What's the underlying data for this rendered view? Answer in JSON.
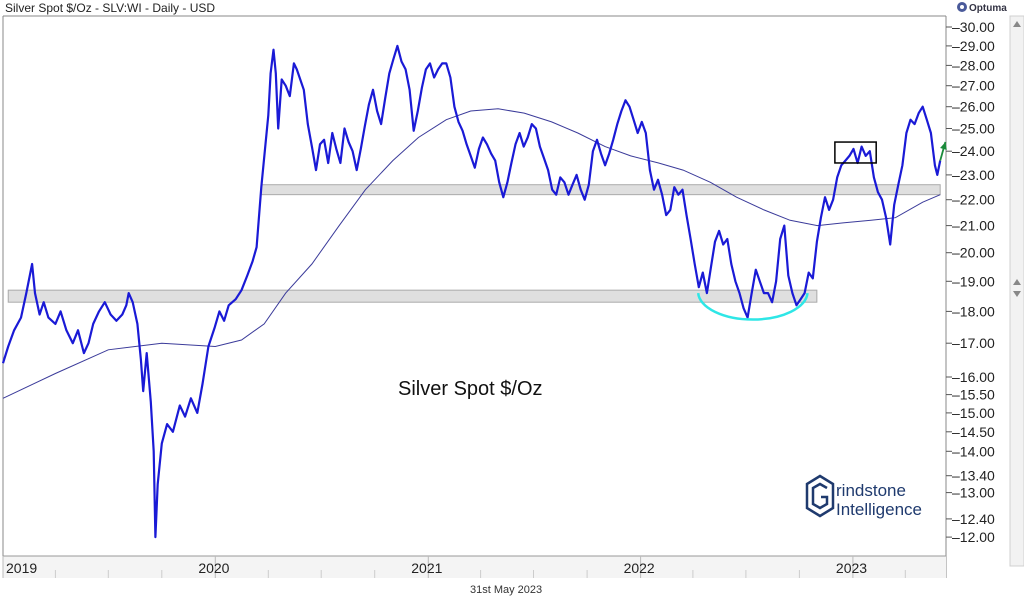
{
  "header": {
    "title": "Silver Spot $/Oz - SLV:WI - Daily - USD",
    "brand": "Optuma",
    "brand_icon": "optuma-logo-icon",
    "date_label": "31st May 2023"
  },
  "watermark": {
    "line1": "rindstone",
    "line2": "Intelligence",
    "icon": "grindstone-g-icon"
  },
  "colors": {
    "price": "#1a1ad6",
    "moving_average": "#3b3b9a",
    "zone_fill": "#d9d9d9",
    "zone_stroke": "#aaaaaa",
    "arc": "#2ee6e6",
    "arrow": "#1a8a3a",
    "box": "#000000"
  },
  "chart_data": {
    "type": "line",
    "title": "Silver Spot $/Oz - SLV:WI - Daily - USD",
    "annotation": "Silver Spot $/Oz",
    "y_scale": "log",
    "ylim": [
      11.6,
      30.6
    ],
    "y_ticks": [
      "30.00",
      "29.00",
      "28.00",
      "27.00",
      "26.00",
      "25.00",
      "24.00",
      "23.00",
      "22.00",
      "21.00",
      "20.00",
      "19.00",
      "18.00",
      "17.00",
      "16.00",
      "15.50",
      "15.00",
      "14.50",
      "14.00",
      "13.40",
      "13.00",
      "12.40",
      "12.00"
    ],
    "xlim": [
      "2019-01-01",
      "2023-06-10"
    ],
    "x_ticks": [
      {
        "date": "2019-01-01",
        "label": "2019"
      },
      {
        "date": "2020-01-01",
        "label": "2020"
      },
      {
        "date": "2021-01-01",
        "label": "2021"
      },
      {
        "date": "2022-01-01",
        "label": "2022"
      },
      {
        "date": "2023-01-01",
        "label": "2023"
      }
    ],
    "grid": false,
    "series": [
      {
        "kind": "price",
        "points": [
          [
            "2019-01-01",
            16.4
          ],
          [
            "2019-01-10",
            16.9
          ],
          [
            "2019-01-20",
            17.4
          ],
          [
            "2019-02-01",
            17.8
          ],
          [
            "2019-02-10",
            18.6
          ],
          [
            "2019-02-20",
            19.6
          ],
          [
            "2019-02-25",
            18.6
          ],
          [
            "2019-03-05",
            17.9
          ],
          [
            "2019-03-12",
            18.3
          ],
          [
            "2019-03-20",
            17.8
          ],
          [
            "2019-04-01",
            17.6
          ],
          [
            "2019-04-10",
            18.0
          ],
          [
            "2019-04-20",
            17.4
          ],
          [
            "2019-05-01",
            17.0
          ],
          [
            "2019-05-10",
            17.4
          ],
          [
            "2019-05-20",
            16.7
          ],
          [
            "2019-05-28",
            17.0
          ],
          [
            "2019-06-05",
            17.6
          ],
          [
            "2019-06-15",
            18.0
          ],
          [
            "2019-06-25",
            18.3
          ],
          [
            "2019-07-05",
            17.9
          ],
          [
            "2019-07-15",
            17.7
          ],
          [
            "2019-07-25",
            17.9
          ],
          [
            "2019-08-01",
            18.2
          ],
          [
            "2019-08-05",
            18.6
          ],
          [
            "2019-08-12",
            18.3
          ],
          [
            "2019-08-20",
            17.6
          ],
          [
            "2019-08-26",
            16.5
          ],
          [
            "2019-08-30",
            15.6
          ],
          [
            "2019-09-05",
            16.7
          ],
          [
            "2019-09-12",
            15.3
          ],
          [
            "2019-09-17",
            14.0
          ],
          [
            "2019-09-20",
            12.0
          ],
          [
            "2019-09-24",
            13.2
          ],
          [
            "2019-10-01",
            14.2
          ],
          [
            "2019-10-10",
            14.7
          ],
          [
            "2019-10-20",
            14.5
          ],
          [
            "2019-11-01",
            15.2
          ],
          [
            "2019-11-10",
            14.9
          ],
          [
            "2019-11-20",
            15.4
          ],
          [
            "2019-12-01",
            15.0
          ],
          [
            "2019-12-10",
            15.8
          ],
          [
            "2019-12-20",
            16.9
          ],
          [
            "2019-12-31",
            17.5
          ],
          [
            "2020-01-08",
            18.0
          ],
          [
            "2020-01-16",
            17.7
          ],
          [
            "2020-01-24",
            18.2
          ],
          [
            "2020-02-05",
            18.4
          ],
          [
            "2020-02-15",
            18.7
          ],
          [
            "2020-02-25",
            19.2
          ],
          [
            "2020-03-05",
            19.7
          ],
          [
            "2020-03-12",
            20.2
          ],
          [
            "2020-03-20",
            22.5
          ],
          [
            "2020-03-26",
            24.0
          ],
          [
            "2020-04-01",
            25.6
          ],
          [
            "2020-04-05",
            27.6
          ],
          [
            "2020-04-10",
            28.8
          ],
          [
            "2020-04-14",
            27.6
          ],
          [
            "2020-04-18",
            25.0
          ],
          [
            "2020-04-24",
            27.3
          ],
          [
            "2020-05-01",
            27.0
          ],
          [
            "2020-05-08",
            26.5
          ],
          [
            "2020-05-15",
            28.1
          ],
          [
            "2020-05-20",
            27.8
          ],
          [
            "2020-06-01",
            26.8
          ],
          [
            "2020-06-08",
            25.2
          ],
          [
            "2020-06-15",
            24.2
          ],
          [
            "2020-06-22",
            23.2
          ],
          [
            "2020-06-29",
            24.3
          ],
          [
            "2020-07-06",
            24.5
          ],
          [
            "2020-07-13",
            23.5
          ],
          [
            "2020-07-20",
            24.8
          ],
          [
            "2020-07-27",
            24.1
          ],
          [
            "2020-08-03",
            23.5
          ],
          [
            "2020-08-10",
            25.0
          ],
          [
            "2020-08-17",
            24.4
          ],
          [
            "2020-08-24",
            24.0
          ],
          [
            "2020-08-31",
            23.2
          ],
          [
            "2020-09-07",
            24.1
          ],
          [
            "2020-09-14",
            25.1
          ],
          [
            "2020-09-21",
            26.1
          ],
          [
            "2020-09-28",
            26.8
          ],
          [
            "2020-10-05",
            25.8
          ],
          [
            "2020-10-12",
            25.2
          ],
          [
            "2020-10-19",
            26.4
          ],
          [
            "2020-10-26",
            27.6
          ],
          [
            "2020-11-02",
            28.3
          ],
          [
            "2020-11-09",
            29.0
          ],
          [
            "2020-11-16",
            28.2
          ],
          [
            "2020-11-23",
            27.8
          ],
          [
            "2020-11-30",
            26.8
          ],
          [
            "2020-12-07",
            24.9
          ],
          [
            "2020-12-14",
            25.8
          ],
          [
            "2020-12-21",
            26.9
          ],
          [
            "2020-12-28",
            27.8
          ],
          [
            "2021-01-04",
            28.1
          ],
          [
            "2021-01-11",
            27.4
          ],
          [
            "2021-01-18",
            27.8
          ],
          [
            "2021-01-25",
            28.1
          ],
          [
            "2021-02-01",
            28.1
          ],
          [
            "2021-02-08",
            27.4
          ],
          [
            "2021-02-15",
            26.0
          ],
          [
            "2021-02-22",
            25.3
          ],
          [
            "2021-03-01",
            24.9
          ],
          [
            "2021-03-08",
            24.3
          ],
          [
            "2021-03-15",
            23.8
          ],
          [
            "2021-03-22",
            23.3
          ],
          [
            "2021-03-29",
            24.1
          ],
          [
            "2021-04-05",
            24.6
          ],
          [
            "2021-04-12",
            24.3
          ],
          [
            "2021-04-19",
            23.9
          ],
          [
            "2021-04-26",
            23.6
          ],
          [
            "2021-05-03",
            22.7
          ],
          [
            "2021-05-10",
            22.1
          ],
          [
            "2021-05-17",
            22.7
          ],
          [
            "2021-05-24",
            23.5
          ],
          [
            "2021-05-31",
            24.3
          ],
          [
            "2021-06-07",
            24.8
          ],
          [
            "2021-06-14",
            24.2
          ],
          [
            "2021-06-21",
            24.6
          ],
          [
            "2021-06-28",
            25.2
          ],
          [
            "2021-07-05",
            25.0
          ],
          [
            "2021-07-12",
            24.2
          ],
          [
            "2021-07-19",
            23.7
          ],
          [
            "2021-07-26",
            23.2
          ],
          [
            "2021-08-02",
            22.4
          ],
          [
            "2021-08-09",
            22.2
          ],
          [
            "2021-08-16",
            22.9
          ],
          [
            "2021-08-23",
            22.7
          ],
          [
            "2021-08-30",
            22.2
          ],
          [
            "2021-09-06",
            22.6
          ],
          [
            "2021-09-13",
            23.0
          ],
          [
            "2021-09-20",
            22.4
          ],
          [
            "2021-09-27",
            22.0
          ],
          [
            "2021-10-04",
            22.6
          ],
          [
            "2021-10-11",
            24.0
          ],
          [
            "2021-10-18",
            24.5
          ],
          [
            "2021-10-25",
            23.9
          ],
          [
            "2021-11-01",
            23.4
          ],
          [
            "2021-11-08",
            23.9
          ],
          [
            "2021-11-15",
            24.5
          ],
          [
            "2021-11-22",
            25.2
          ],
          [
            "2021-11-29",
            25.8
          ],
          [
            "2021-12-06",
            26.3
          ],
          [
            "2021-12-13",
            26.0
          ],
          [
            "2021-12-20",
            25.4
          ],
          [
            "2021-12-27",
            24.8
          ],
          [
            "2022-01-03",
            25.3
          ],
          [
            "2022-01-10",
            24.8
          ],
          [
            "2022-01-17",
            23.2
          ],
          [
            "2022-01-24",
            22.4
          ],
          [
            "2022-01-31",
            22.8
          ],
          [
            "2022-02-07",
            22.2
          ],
          [
            "2022-02-14",
            21.4
          ],
          [
            "2022-02-21",
            21.6
          ],
          [
            "2022-02-28",
            22.5
          ],
          [
            "2022-03-07",
            22.2
          ],
          [
            "2022-03-14",
            22.4
          ],
          [
            "2022-03-21",
            21.4
          ],
          [
            "2022-03-28",
            20.5
          ],
          [
            "2022-04-04",
            19.6
          ],
          [
            "2022-04-11",
            18.8
          ],
          [
            "2022-04-18",
            19.3
          ],
          [
            "2022-04-25",
            18.6
          ],
          [
            "2022-05-02",
            19.5
          ],
          [
            "2022-05-09",
            20.4
          ],
          [
            "2022-05-16",
            20.8
          ],
          [
            "2022-05-23",
            20.3
          ],
          [
            "2022-05-30",
            20.5
          ],
          [
            "2022-06-06",
            19.6
          ],
          [
            "2022-06-13",
            19.0
          ],
          [
            "2022-06-20",
            18.6
          ],
          [
            "2022-06-27",
            18.1
          ],
          [
            "2022-07-04",
            17.8
          ],
          [
            "2022-07-11",
            18.6
          ],
          [
            "2022-07-18",
            19.4
          ],
          [
            "2022-07-25",
            19.0
          ],
          [
            "2022-08-01",
            18.6
          ],
          [
            "2022-08-08",
            18.6
          ],
          [
            "2022-08-15",
            18.3
          ],
          [
            "2022-08-22",
            19.0
          ],
          [
            "2022-08-29",
            20.5
          ],
          [
            "2022-09-05",
            21.0
          ],
          [
            "2022-09-12",
            19.2
          ],
          [
            "2022-09-19",
            18.6
          ],
          [
            "2022-09-26",
            18.2
          ],
          [
            "2022-10-03",
            18.4
          ],
          [
            "2022-10-10",
            18.6
          ],
          [
            "2022-10-17",
            19.3
          ],
          [
            "2022-10-24",
            19.1
          ],
          [
            "2022-10-31",
            20.4
          ],
          [
            "2022-11-07",
            21.3
          ],
          [
            "2022-11-14",
            22.1
          ],
          [
            "2022-11-21",
            21.6
          ],
          [
            "2022-11-28",
            22.0
          ],
          [
            "2022-12-05",
            22.9
          ],
          [
            "2022-12-12",
            23.4
          ],
          [
            "2022-12-19",
            23.6
          ],
          [
            "2022-12-26",
            23.8
          ],
          [
            "2023-01-02",
            24.1
          ],
          [
            "2023-01-09",
            23.5
          ],
          [
            "2023-01-16",
            24.2
          ],
          [
            "2023-01-23",
            23.8
          ],
          [
            "2023-01-30",
            24.0
          ],
          [
            "2023-02-06",
            22.9
          ],
          [
            "2023-02-13",
            22.3
          ],
          [
            "2023-02-20",
            22.0
          ],
          [
            "2023-02-27",
            21.3
          ],
          [
            "2023-03-06",
            20.3
          ],
          [
            "2023-03-13",
            21.8
          ],
          [
            "2023-03-20",
            22.6
          ],
          [
            "2023-03-27",
            23.4
          ],
          [
            "2023-04-03",
            24.8
          ],
          [
            "2023-04-10",
            25.4
          ],
          [
            "2023-04-17",
            25.2
          ],
          [
            "2023-04-24",
            25.7
          ],
          [
            "2023-05-01",
            26.0
          ],
          [
            "2023-05-08",
            25.4
          ],
          [
            "2023-05-15",
            24.8
          ],
          [
            "2023-05-22",
            23.4
          ],
          [
            "2023-05-26",
            23.0
          ],
          [
            "2023-05-31",
            23.6
          ]
        ]
      },
      {
        "kind": "moving-average",
        "points": [
          [
            "2019-01-01",
            15.4
          ],
          [
            "2019-04-01",
            16.1
          ],
          [
            "2019-07-01",
            16.8
          ],
          [
            "2019-10-01",
            17.0
          ],
          [
            "2020-01-01",
            16.9
          ],
          [
            "2020-02-15",
            17.1
          ],
          [
            "2020-03-25",
            17.6
          ],
          [
            "2020-05-01",
            18.6
          ],
          [
            "2020-06-15",
            19.6
          ],
          [
            "2020-08-01",
            21.0
          ],
          [
            "2020-09-15",
            22.4
          ],
          [
            "2020-11-01",
            23.6
          ],
          [
            "2020-12-15",
            24.6
          ],
          [
            "2021-02-01",
            25.4
          ],
          [
            "2021-03-15",
            25.8
          ],
          [
            "2021-05-01",
            25.9
          ],
          [
            "2021-06-15",
            25.7
          ],
          [
            "2021-08-01",
            25.3
          ],
          [
            "2021-09-15",
            24.8
          ],
          [
            "2021-11-01",
            24.2
          ],
          [
            "2021-12-15",
            23.8
          ],
          [
            "2022-02-01",
            23.5
          ],
          [
            "2022-03-15",
            23.2
          ],
          [
            "2022-05-01",
            22.7
          ],
          [
            "2022-06-15",
            22.1
          ],
          [
            "2022-08-01",
            21.6
          ],
          [
            "2022-09-15",
            21.2
          ],
          [
            "2022-11-01",
            21.0
          ],
          [
            "2022-12-15",
            21.1
          ],
          [
            "2023-02-01",
            21.2
          ],
          [
            "2023-03-15",
            21.3
          ],
          [
            "2023-05-01",
            21.9
          ],
          [
            "2023-05-31",
            22.2
          ]
        ]
      }
    ],
    "zones": [
      {
        "from": "2020-03-20",
        "to": "2023-05-31",
        "low": 22.2,
        "high": 22.6
      },
      {
        "from": "2019-01-10",
        "to": "2022-10-31",
        "low": 18.3,
        "high": 18.7
      }
    ],
    "box": {
      "from": "2022-12-01",
      "to": "2023-02-10",
      "low": 23.5,
      "high": 24.4
    },
    "arrow": {
      "from": [
        "2023-05-31",
        23.6
      ],
      "to": [
        "2023-06-09",
        24.4
      ]
    },
    "arc": {
      "from": "2022-04-10",
      "to": "2022-10-15",
      "top": 18.6,
      "bottom": 17.7
    }
  }
}
